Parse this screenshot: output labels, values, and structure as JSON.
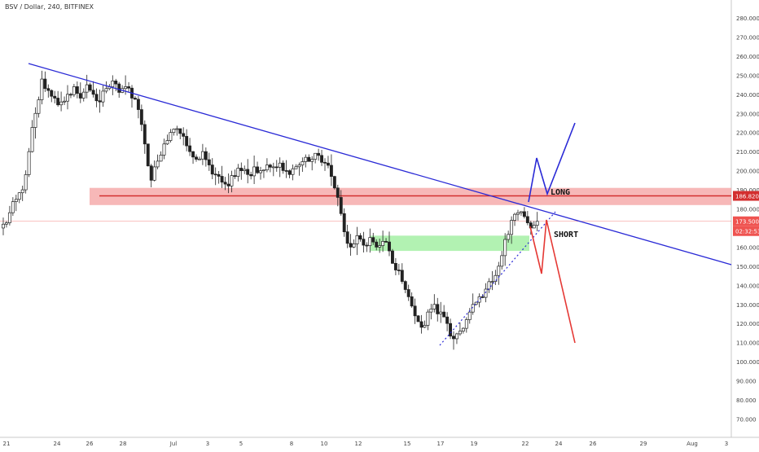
{
  "header": {
    "symbol_line": "BSV / Dollar, 240, BITFINEX"
  },
  "price_axis": {
    "ticks": [
      "280.000",
      "270.000",
      "260.000",
      "250.000",
      "240.000",
      "230.000",
      "220.000",
      "210.000",
      "200.000",
      "190.000",
      "180.000",
      "170.000",
      "160.000",
      "150.000",
      "140.000",
      "130.000",
      "120.000",
      "110.000",
      "100.000",
      "90.000",
      "80.000",
      "70.000"
    ],
    "tag_level": "186.820",
    "tag_price": "173.500",
    "tag_countdown": "02:32:53"
  },
  "time_axis": {
    "ticks": [
      "21",
      "24",
      "26",
      "28",
      "Jul",
      "3",
      "5",
      "8",
      "10",
      "12",
      "15",
      "17",
      "19",
      "22",
      "24",
      "26",
      "29",
      "Aug",
      "3"
    ]
  },
  "annotations": {
    "long_label": "LONG",
    "short_label": "SHORT"
  },
  "colors": {
    "trendline": "#2a2ad6",
    "resistance_line": "#d32f2f",
    "resistance_zone": "#f4a0a0",
    "support_zone": "#a5f0a5",
    "short_path": "#e53935",
    "long_path": "#2a2ad6",
    "level_tag_bg": "#d32f2f",
    "price_tag_bg": "#ef5350"
  },
  "chart_data": {
    "type": "candlestick",
    "symbol": "BSV / Dollar",
    "interval": "240",
    "exchange": "BITFINEX",
    "y_range": [
      65,
      285
    ],
    "horizontal_levels": [
      186.82,
      173.5
    ],
    "resistance_zone": [
      182,
      191
    ],
    "support_zone": [
      158,
      166
    ],
    "price_close_path": [
      [
        0,
        172
      ],
      [
        2,
        178
      ],
      [
        4,
        185
      ],
      [
        6,
        190
      ],
      [
        8,
        210
      ],
      [
        10,
        230
      ],
      [
        12,
        248
      ],
      [
        14,
        242
      ],
      [
        16,
        238
      ],
      [
        18,
        236
      ],
      [
        20,
        240
      ],
      [
        22,
        244
      ],
      [
        24,
        238
      ],
      [
        26,
        245
      ],
      [
        28,
        240
      ],
      [
        30,
        236
      ],
      [
        32,
        243
      ],
      [
        34,
        247
      ],
      [
        36,
        241
      ],
      [
        38,
        244
      ],
      [
        40,
        238
      ],
      [
        42,
        232
      ],
      [
        44,
        214
      ],
      [
        46,
        195
      ],
      [
        48,
        205
      ],
      [
        50,
        214
      ],
      [
        52,
        220
      ],
      [
        54,
        222
      ],
      [
        56,
        218
      ],
      [
        58,
        210
      ],
      [
        60,
        206
      ],
      [
        62,
        210
      ],
      [
        64,
        203
      ],
      [
        66,
        198
      ],
      [
        68,
        194
      ],
      [
        70,
        192
      ],
      [
        72,
        197
      ],
      [
        74,
        200
      ],
      [
        76,
        198
      ],
      [
        78,
        202
      ],
      [
        80,
        200
      ],
      [
        82,
        203
      ],
      [
        84,
        202
      ],
      [
        86,
        204
      ],
      [
        88,
        200
      ],
      [
        90,
        201
      ],
      [
        92,
        203
      ],
      [
        94,
        207
      ],
      [
        96,
        206
      ],
      [
        98,
        208
      ],
      [
        100,
        204
      ],
      [
        102,
        197
      ],
      [
        104,
        186
      ],
      [
        106,
        168
      ],
      [
        108,
        160
      ],
      [
        110,
        166
      ],
      [
        112,
        161
      ],
      [
        114,
        165
      ],
      [
        116,
        160
      ],
      [
        118,
        163
      ],
      [
        120,
        158
      ],
      [
        122,
        148
      ],
      [
        124,
        142
      ],
      [
        126,
        134
      ],
      [
        128,
        124
      ],
      [
        130,
        118
      ],
      [
        132,
        126
      ],
      [
        134,
        130
      ],
      [
        136,
        126
      ],
      [
        138,
        120
      ],
      [
        140,
        112
      ],
      [
        142,
        116
      ],
      [
        144,
        122
      ],
      [
        146,
        130
      ],
      [
        148,
        134
      ],
      [
        150,
        138
      ],
      [
        152,
        142
      ],
      [
        154,
        150
      ],
      [
        156,
        164
      ],
      [
        158,
        174
      ],
      [
        160,
        178
      ],
      [
        162,
        176
      ],
      [
        164,
        170
      ],
      [
        166,
        173.5
      ]
    ]
  }
}
